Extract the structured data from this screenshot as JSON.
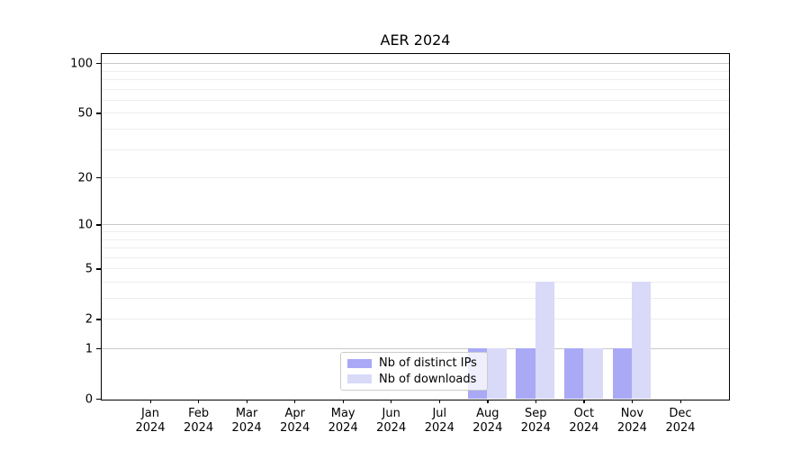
{
  "chart_data": {
    "type": "bar",
    "title": "AER 2024",
    "categories": [
      "Jan 2024",
      "Feb 2024",
      "Mar 2024",
      "Apr 2024",
      "May 2024",
      "Jun 2024",
      "Jul 2024",
      "Aug 2024",
      "Sep 2024",
      "Oct 2024",
      "Nov 2024",
      "Dec 2024"
    ],
    "series": [
      {
        "name": "Nb of distinct IPs",
        "color": "#a9a9f6",
        "values": [
          0,
          0,
          0,
          0,
          0,
          0,
          0,
          1,
          1,
          1,
          1,
          0
        ]
      },
      {
        "name": "Nb of downloads",
        "color": "#d9d9f8",
        "values": [
          0,
          0,
          0,
          0,
          0,
          0,
          0,
          1,
          4,
          1,
          4,
          0
        ]
      }
    ],
    "xlabel": "",
    "ylabel": "",
    "yscale": "log1p",
    "ylim": [
      0,
      100
    ],
    "y_ticks": [
      0,
      1,
      2,
      5,
      10,
      20,
      50,
      100
    ],
    "y_tick_labels": [
      "0",
      "1",
      "2",
      "5",
      "10",
      "20",
      "50",
      "100"
    ],
    "y_major_gridlines": [
      1,
      10,
      100
    ],
    "y_minor_gridlines": [
      2,
      3,
      4,
      5,
      6,
      7,
      8,
      9,
      20,
      30,
      40,
      50,
      60,
      70,
      80,
      90
    ],
    "grid": true,
    "legend_position": "lower-center-inside",
    "colors": {
      "major_grid": "#c9c9c9",
      "minor_grid": "#ededed",
      "axis": "#000000",
      "background": "#ffffff"
    }
  }
}
